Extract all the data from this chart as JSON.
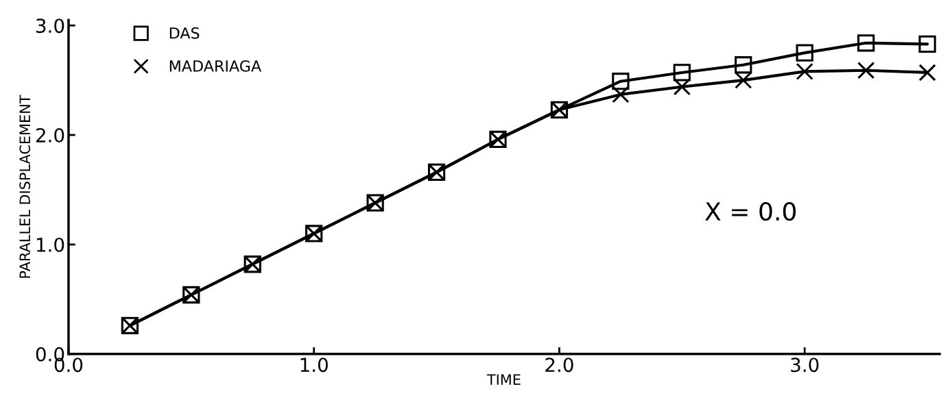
{
  "chart_data": {
    "type": "line",
    "xlabel": "TIME",
    "ylabel": "PARALLEL DISPLACEMENT",
    "x": [
      0.25,
      0.5,
      0.75,
      1.0,
      1.25,
      1.5,
      1.75,
      2.0,
      2.25,
      2.5,
      2.75,
      3.0,
      3.25,
      3.5
    ],
    "series": [
      {
        "name": "DAS",
        "color": "#000000",
        "marker": "square",
        "values": [
          0.26,
          0.54,
          0.82,
          1.1,
          1.38,
          1.66,
          1.96,
          2.23,
          2.49,
          2.57,
          2.64,
          2.75,
          2.84,
          2.83
        ]
      },
      {
        "name": "MADARIAGA",
        "color": "#000000",
        "marker": "cross",
        "values": [
          0.26,
          0.54,
          0.82,
          1.1,
          1.38,
          1.66,
          1.96,
          2.23,
          2.37,
          2.44,
          2.5,
          2.58,
          2.59,
          2.57
        ]
      }
    ],
    "xlim": [
      0,
      3.55
    ],
    "ylim": [
      0,
      3.05
    ],
    "xticks": [
      {
        "value": 0,
        "label": "0.0"
      },
      {
        "value": 1,
        "label": "1.0"
      },
      {
        "value": 2,
        "label": "2.0"
      },
      {
        "value": 3,
        "label": "3.0"
      }
    ],
    "yticks": [
      {
        "value": 0,
        "label": "0.0"
      },
      {
        "value": 1,
        "label": "1.0"
      },
      {
        "value": 2,
        "label": "2.0"
      },
      {
        "value": 3,
        "label": "3.0"
      }
    ],
    "annotations": [
      "X = 0.0"
    ],
    "grid": false,
    "legend": "top left"
  }
}
